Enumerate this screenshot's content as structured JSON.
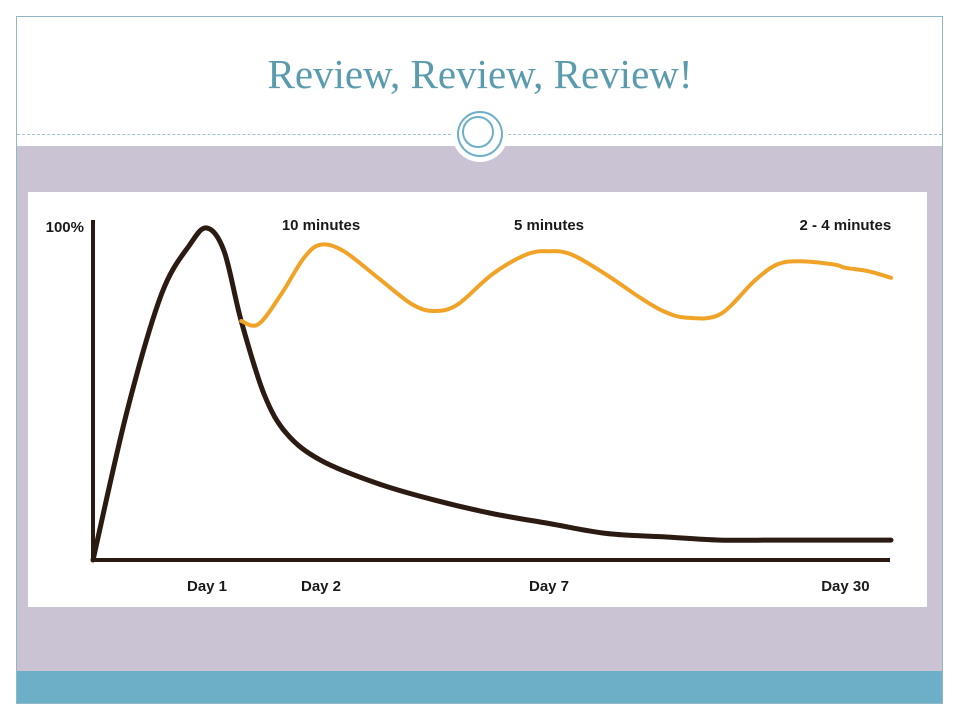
{
  "slide": {
    "title": "Review, Review, Review!"
  },
  "colors": {
    "title": "#5a9bad",
    "band": "#c9c3d3",
    "bar": "#6eafc8",
    "forgetting_curve": "#2b1b12",
    "review_curve": "#f0a326"
  },
  "chart_data": {
    "type": "line",
    "title": "",
    "xlabel": "",
    "ylabel": "",
    "y_tick_label": "100%",
    "x_ticks": [
      "Day 1",
      "Day 2",
      "Day 7",
      "Day 30"
    ],
    "x_tick_positions": [
      1,
      2,
      4,
      6.6
    ],
    "annotations": [
      {
        "text": "10 minutes",
        "x": 2,
        "y": 100
      },
      {
        "text": "5 minutes",
        "x": 4,
        "y": 100
      },
      {
        "text": "2 - 4 minutes",
        "x": 6.6,
        "y": 100
      }
    ],
    "xlim": [
      0,
      7
    ],
    "ylim": [
      0,
      100
    ],
    "series": [
      {
        "x": [
          0,
          0.3,
          0.6,
          0.85,
          1.0,
          1.15,
          1.3,
          1.5,
          1.7,
          2.0,
          2.5,
          3.0,
          3.5,
          4.0,
          4.5,
          5.0,
          5.5,
          6.0,
          6.5,
          7.0
        ],
        "y": [
          0,
          45,
          80,
          95,
          100,
          93,
          72,
          50,
          38,
          30,
          23,
          18,
          14,
          11,
          8,
          7,
          6,
          6,
          6,
          6
        ]
      },
      {
        "x": [
          1.3,
          1.45,
          1.65,
          1.85,
          2.0,
          2.2,
          2.5,
          2.8,
          3.0,
          3.2,
          3.5,
          3.8,
          4.0,
          4.2,
          4.5,
          4.8,
          5.0,
          5.2,
          5.5,
          5.8,
          6.0,
          6.2,
          6.5,
          6.6,
          6.8,
          7.0
        ],
        "y": [
          72,
          71,
          80,
          91,
          95,
          93,
          85,
          77,
          75,
          77,
          86,
          92,
          93,
          92,
          86,
          79,
          75,
          73,
          74,
          84,
          89,
          90,
          89,
          88,
          87,
          85
        ]
      }
    ]
  }
}
